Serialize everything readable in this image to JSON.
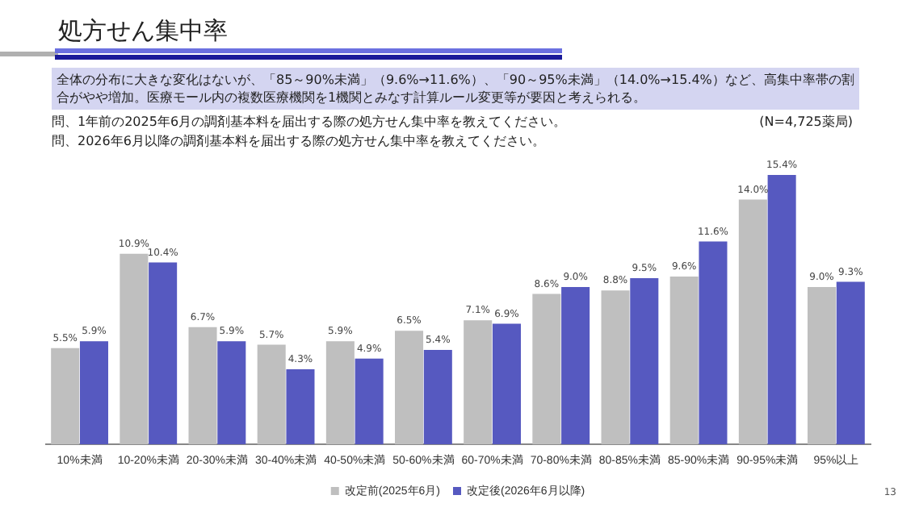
{
  "chart_data": {
    "type": "bar",
    "title": "処方せん集中率",
    "annotations": [
      "全体の分布に大きな変化はないが、「85～90%未満」（9.6%→11.6%）、「90～95%未満」（14.0%→15.4%）など、高集中率帯の割合がやや増加。医療モール内の複数医療機関を1機関とみなす計算ルール変更等が要因と考えられる。",
      "問、1年前の2025年6月の調剤基本料を届出する際の処方せん集中率を教えてください。",
      "問、2026年6月以降の調剤基本料を届出する際の処方せん集中率を教えてください。",
      "(N=4,725薬局)",
      "13"
    ],
    "categories": [
      "10%未満",
      "10-20%未満",
      "20-30%未満",
      "30-40%未満",
      "40-50%未満",
      "50-60%未満",
      "60-70%未満",
      "70-80%未満",
      "80-85%未満",
      "85-90%未満",
      "90-95%未満",
      "95%以上"
    ],
    "series": [
      {
        "name": "改定前(2025年6月)",
        "color": "#bfbfbf",
        "values": [
          5.5,
          10.9,
          6.7,
          5.7,
          5.9,
          6.5,
          7.1,
          8.6,
          8.8,
          9.6,
          14.0,
          9.0
        ],
        "value_labels": [
          "5.5%",
          "10.9%",
          "6.7%",
          "5.7%",
          "5.9%",
          "6.5%",
          "7.1%",
          "8.6%",
          "8.8%",
          "9.6%",
          "14.0%",
          "9.0%"
        ]
      },
      {
        "name": "改定後(2026年6月以降)",
        "color": "#5659c0",
        "values": [
          5.9,
          10.4,
          5.9,
          4.3,
          4.9,
          5.4,
          6.9,
          9.0,
          9.5,
          11.6,
          15.4,
          9.3
        ],
        "value_labels": [
          "5.9%",
          "10.4%",
          "5.9%",
          "4.3%",
          "4.9%",
          "5.4%",
          "6.9%",
          "9.0%",
          "9.5%",
          "11.6%",
          "15.4%",
          "9.3%"
        ]
      }
    ],
    "grid": false,
    "legend": "bottom",
    "tick_labels": "x"
  }
}
